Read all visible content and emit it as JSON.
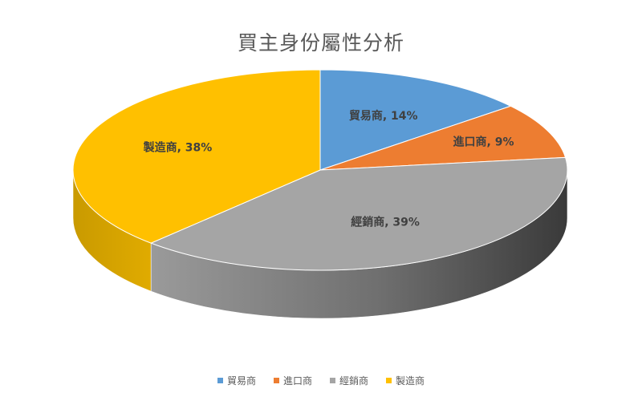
{
  "chart_data": {
    "type": "pie",
    "title": "買主身份屬性分析",
    "categories": [
      "貿易商",
      "進口商",
      "經銷商",
      "製造商"
    ],
    "values": [
      14,
      9,
      39,
      38
    ],
    "unit": "%",
    "data_labels": [
      "貿易商, 14%",
      "進口商, 9%",
      "經銷商, 39%",
      "製造商, 38%"
    ],
    "colors": [
      "#5b9bd5",
      "#ed7d31",
      "#a5a5a5",
      "#ffc000"
    ],
    "side_colors": [
      "#41719c",
      "#ae5a21",
      "#6e6e6e",
      "#bf9000"
    ],
    "style": "3d",
    "legend_position": "bottom"
  }
}
